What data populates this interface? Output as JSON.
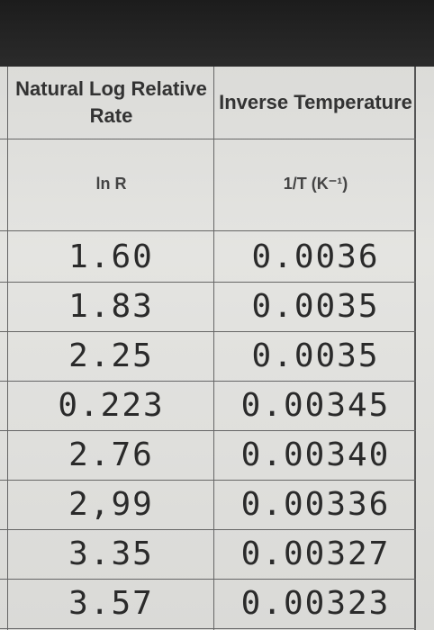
{
  "table": {
    "header": [
      {
        "title": "Natural Log Relative Rate",
        "symbol": "ln R"
      },
      {
        "title": "Inverse Temperature",
        "symbol": "1/T (K⁻¹)"
      }
    ],
    "rows": [
      [
        "1.60",
        "0.0036"
      ],
      [
        "1.83",
        "0.0035"
      ],
      [
        "2.25",
        "0.0035"
      ],
      [
        "0.223",
        "0.00345"
      ],
      [
        "2.76",
        "0.00340"
      ],
      [
        "2,99",
        "0.00336"
      ],
      [
        "3.35",
        "0.00327"
      ],
      [
        "3.57",
        "0.00323"
      ]
    ]
  }
}
